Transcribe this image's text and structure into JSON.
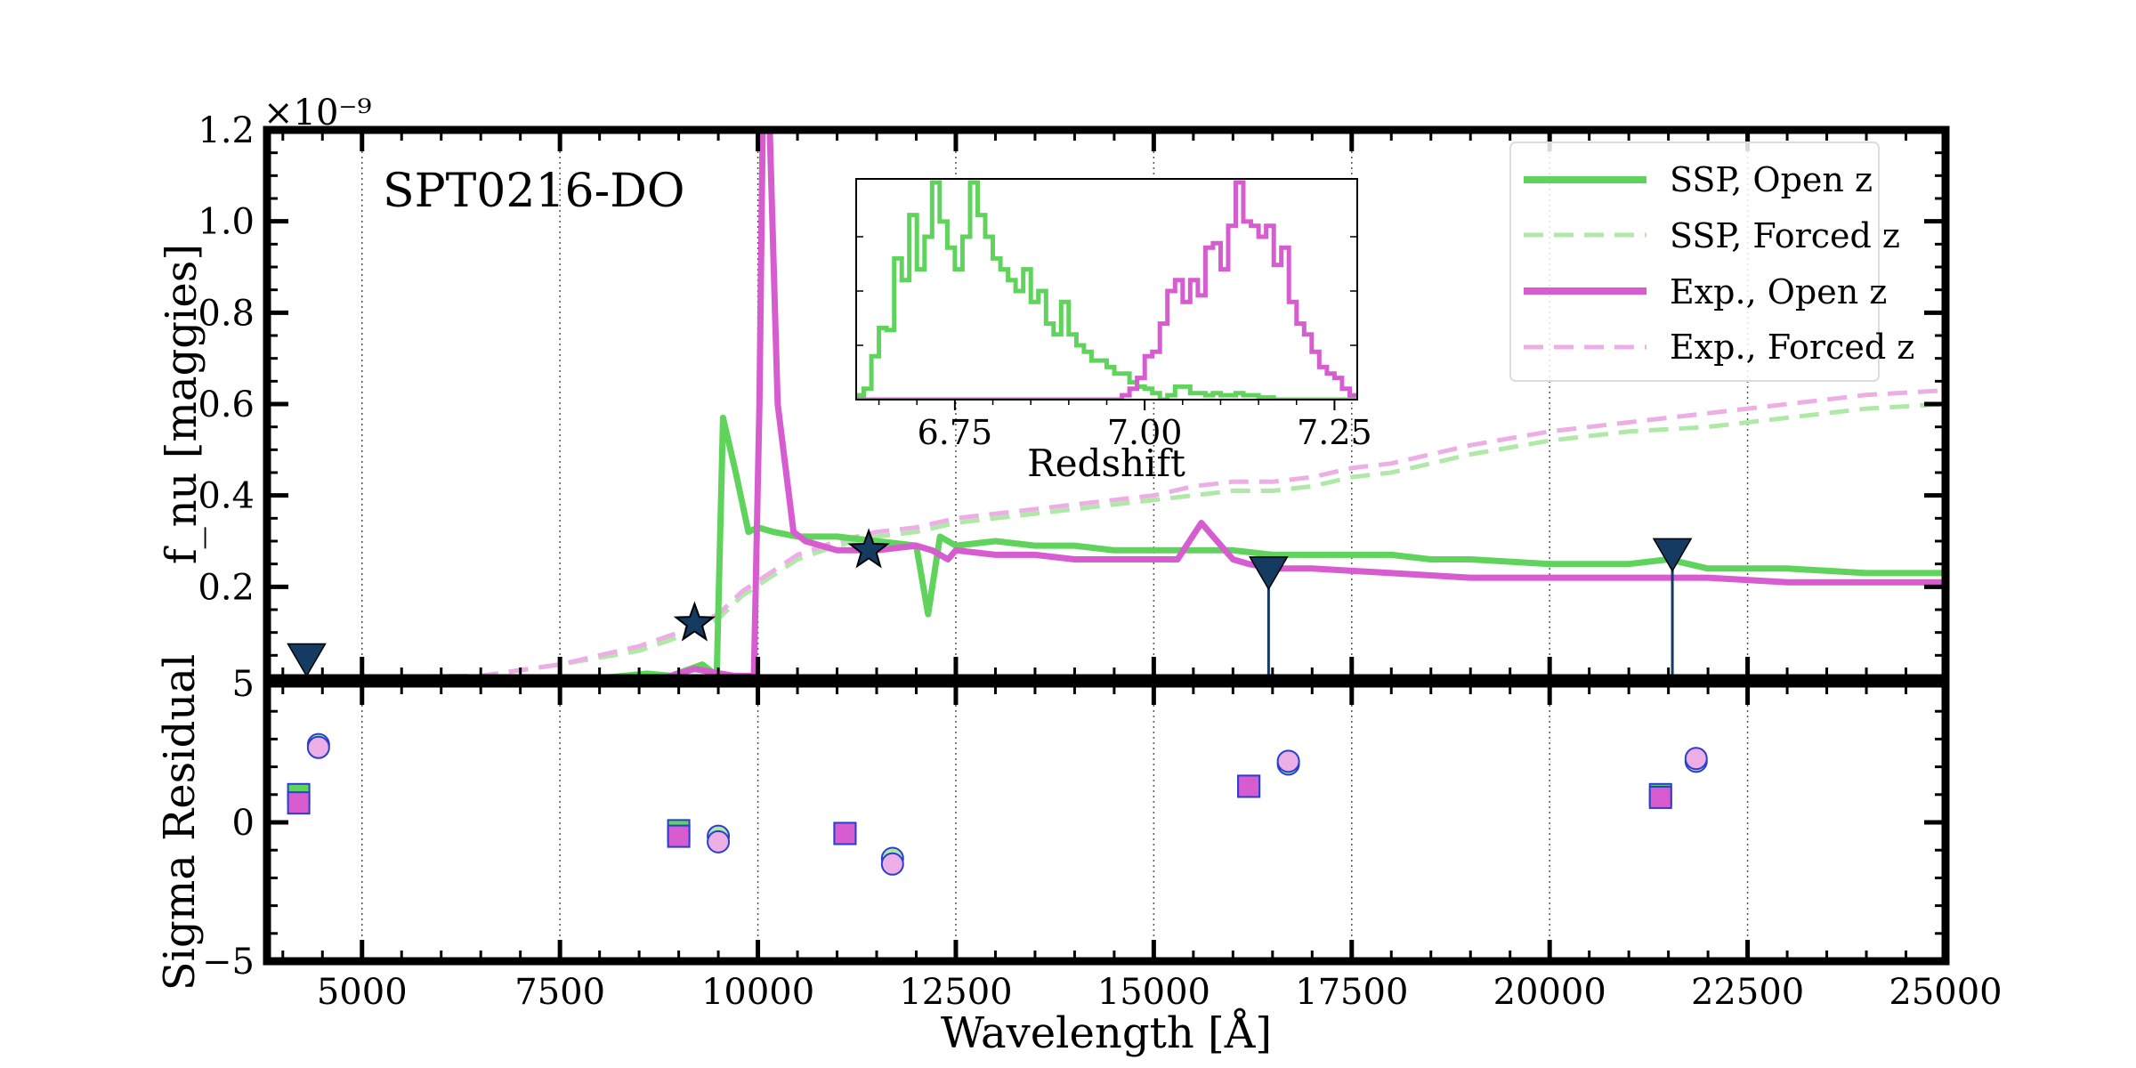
{
  "colors": {
    "ssp": "#5fd35b",
    "ssp_forced": "#b0e8a8",
    "exp": "#d65ccf",
    "exp_forced": "#ecaee4",
    "photometry": "#163b63",
    "residual_edge": "#2a3fd0"
  },
  "chart_data": [
    {
      "type": "line",
      "panel": "spectrum",
      "annotation": "SPT0216-DO",
      "ylabel": "f_nu [maggies]",
      "yscale_label": "×10⁻⁹",
      "xlim": [
        3800,
        25000
      ],
      "ylim": [
        0,
        1.2
      ],
      "yticks": [
        "0.2",
        "0.4",
        "0.6",
        "0.8",
        "1.0",
        "1.2"
      ],
      "ytick_values": [
        0.2,
        0.4,
        0.6,
        0.8,
        1.0,
        1.2
      ],
      "grid": "vertical dotted",
      "legend": {
        "placement": "top-right",
        "entries": [
          "SSP, Open z",
          "SSP, Forced z",
          "Exp., Open z",
          "Exp., Forced z"
        ]
      },
      "series": [
        {
          "name": "SSP, Open z",
          "style": "solid",
          "x": [
            3800,
            8000,
            8600,
            8900,
            9300,
            9480,
            9560,
            9720,
            9880,
            10000,
            10200,
            10500,
            11000,
            11500,
            12000,
            12150,
            12300,
            12500,
            13000,
            13500,
            14000,
            14500,
            15000,
            15500,
            16000,
            16500,
            17000,
            17500,
            18000,
            18500,
            19000,
            20000,
            21000,
            21500,
            22000,
            23000,
            24000,
            25000
          ],
          "y": [
            0,
            0,
            0.01,
            0.005,
            0.03,
            0.005,
            0.57,
            0.45,
            0.32,
            0.33,
            0.32,
            0.31,
            0.31,
            0.3,
            0.29,
            0.14,
            0.31,
            0.29,
            0.3,
            0.29,
            0.29,
            0.28,
            0.28,
            0.28,
            0.28,
            0.27,
            0.27,
            0.27,
            0.27,
            0.26,
            0.26,
            0.25,
            0.25,
            0.26,
            0.24,
            0.24,
            0.23,
            0.23
          ]
        },
        {
          "name": "SSP, Forced z",
          "style": "dashed",
          "x": [
            3800,
            6500,
            7500,
            8500,
            9000,
            9500,
            9800,
            10500,
            11000,
            11500,
            12000,
            12500,
            13000,
            14000,
            15000,
            15500,
            16000,
            16500,
            17000,
            17500,
            18000,
            19000,
            20000,
            21000,
            22000,
            23000,
            24000,
            25000
          ],
          "y": [
            0,
            0.005,
            0.03,
            0.06,
            0.09,
            0.13,
            0.18,
            0.26,
            0.29,
            0.31,
            0.32,
            0.34,
            0.35,
            0.37,
            0.39,
            0.4,
            0.41,
            0.41,
            0.42,
            0.44,
            0.45,
            0.49,
            0.52,
            0.54,
            0.55,
            0.57,
            0.59,
            0.6
          ]
        },
        {
          "name": "Exp., Open z",
          "style": "solid",
          "x": [
            3800,
            8800,
            9200,
            9700,
            9950,
            10020,
            10060,
            10150,
            10250,
            10450,
            10600,
            10800,
            11000,
            11500,
            12000,
            12200,
            12400,
            12500,
            13000,
            13500,
            14000,
            14500,
            15000,
            15300,
            15600,
            15800,
            16000,
            16200,
            16500,
            17000,
            18000,
            19000,
            20000,
            21000,
            22000,
            23000,
            24000,
            25000
          ],
          "y": [
            0,
            0,
            0.02,
            0.005,
            0.005,
            0.6,
            1.2,
            1.2,
            0.6,
            0.32,
            0.3,
            0.29,
            0.28,
            0.28,
            0.29,
            0.28,
            0.26,
            0.28,
            0.27,
            0.27,
            0.26,
            0.26,
            0.26,
            0.26,
            0.34,
            0.3,
            0.26,
            0.25,
            0.24,
            0.24,
            0.23,
            0.22,
            0.22,
            0.22,
            0.22,
            0.21,
            0.21,
            0.21
          ]
        },
        {
          "name": "Exp., Forced z",
          "style": "dashed",
          "x": [
            3800,
            6500,
            7500,
            8500,
            9000,
            9500,
            9800,
            10500,
            11000,
            11500,
            12000,
            12500,
            13000,
            14000,
            15000,
            15500,
            16000,
            16500,
            17000,
            17500,
            18000,
            19000,
            20000,
            21000,
            22000,
            23000,
            24000,
            25000
          ],
          "y": [
            0,
            0.005,
            0.03,
            0.07,
            0.1,
            0.14,
            0.19,
            0.27,
            0.3,
            0.32,
            0.33,
            0.35,
            0.36,
            0.38,
            0.4,
            0.42,
            0.43,
            0.43,
            0.44,
            0.46,
            0.47,
            0.51,
            0.54,
            0.56,
            0.58,
            0.6,
            0.62,
            0.63
          ]
        }
      ],
      "photometry_detections": [
        {
          "x": 9200,
          "y": 0.12
        },
        {
          "x": 11400,
          "y": 0.28
        }
      ],
      "photometry_upper_limits": [
        {
          "x": 4300,
          "y": 0.04
        },
        {
          "x": 16450,
          "y": 0.23
        },
        {
          "x": 21550,
          "y": 0.27
        }
      ]
    },
    {
      "type": "histogram",
      "panel": "inset",
      "xlabel": "Redshift",
      "xlim": [
        6.62,
        7.28
      ],
      "xticks": [
        "6.75",
        "7.00",
        "7.25"
      ],
      "xtick_values": [
        6.75,
        7.0,
        7.25
      ],
      "ylim": [
        0,
        1
      ],
      "bins": {
        "start": 6.62,
        "width": 0.01,
        "ssp": [
          0.02,
          0.05,
          0.2,
          0.33,
          0.32,
          0.65,
          0.55,
          0.85,
          0.6,
          0.75,
          1.0,
          0.82,
          0.7,
          0.6,
          0.75,
          1.0,
          0.85,
          0.75,
          0.65,
          0.6,
          0.55,
          0.5,
          0.6,
          0.45,
          0.5,
          0.35,
          0.3,
          0.45,
          0.3,
          0.25,
          0.22,
          0.18,
          0.18,
          0.15,
          0.12,
          0.12,
          0.08,
          0.06,
          0.05,
          0.03,
          0.0,
          0.02,
          0.06,
          0.06,
          0.03,
          0.03,
          0.02,
          0.03,
          0.02,
          0.02,
          0.03,
          0.02,
          0.02,
          0.01,
          0.01,
          0.0,
          0.0,
          0.0,
          0.0,
          0.0,
          0.0,
          0.0,
          0.0,
          0.0,
          0.0,
          0.0
        ],
        "exp": [
          0.0,
          0.0,
          0.0,
          0.0,
          0.0,
          0.0,
          0.0,
          0.0,
          0.0,
          0.0,
          0.0,
          0.0,
          0.0,
          0.0,
          0.0,
          0.0,
          0.0,
          0.0,
          0.0,
          0.0,
          0.0,
          0.0,
          0.0,
          0.0,
          0.0,
          0.0,
          0.0,
          0.0,
          0.0,
          0.0,
          0.0,
          0.0,
          0.0,
          0.0,
          0.0,
          0.02,
          0.05,
          0.1,
          0.2,
          0.22,
          0.35,
          0.5,
          0.55,
          0.45,
          0.55,
          0.48,
          0.7,
          0.72,
          0.6,
          0.8,
          1.0,
          0.82,
          0.8,
          0.75,
          0.8,
          0.62,
          0.7,
          0.45,
          0.35,
          0.3,
          0.22,
          0.15,
          0.12,
          0.1,
          0.05,
          0.02
        ]
      }
    },
    {
      "type": "scatter",
      "panel": "residual",
      "xlabel": "Wavelength [Å]",
      "ylabel": "Sigma Residual",
      "xlim": [
        3800,
        25000
      ],
      "ylim": [
        -5,
        5
      ],
      "xticks": [
        "5000",
        "7500",
        "10000",
        "12500",
        "15000",
        "17500",
        "20000",
        "22500",
        "25000"
      ],
      "xtick_values": [
        5000,
        7500,
        10000,
        12500,
        15000,
        17500,
        20000,
        22500,
        25000
      ],
      "yticks": [
        "−5",
        "0",
        "5"
      ],
      "ytick_values": [
        -5,
        0,
        5
      ],
      "series": [
        {
          "name": "SSP, Open z",
          "marker": "square",
          "x": [
            4200,
            9000,
            11100,
            16200,
            21400
          ],
          "y": [
            1.0,
            -0.3,
            -0.4,
            1.3,
            1.0
          ]
        },
        {
          "name": "SSP, Forced z",
          "marker": "circle",
          "x": [
            4450,
            9500,
            11700,
            16700,
            21850
          ],
          "y": [
            2.8,
            -0.5,
            -1.3,
            2.1,
            2.2
          ]
        },
        {
          "name": "Exp., Open z",
          "marker": "square",
          "x": [
            4200,
            9000,
            11100,
            16200,
            21400
          ],
          "y": [
            0.7,
            -0.5,
            -0.4,
            1.3,
            0.9
          ]
        },
        {
          "name": "Exp., Forced z",
          "marker": "circle",
          "x": [
            4450,
            9500,
            11700,
            16700,
            21850
          ],
          "y": [
            2.7,
            -0.7,
            -1.5,
            2.2,
            2.3
          ]
        }
      ]
    }
  ]
}
